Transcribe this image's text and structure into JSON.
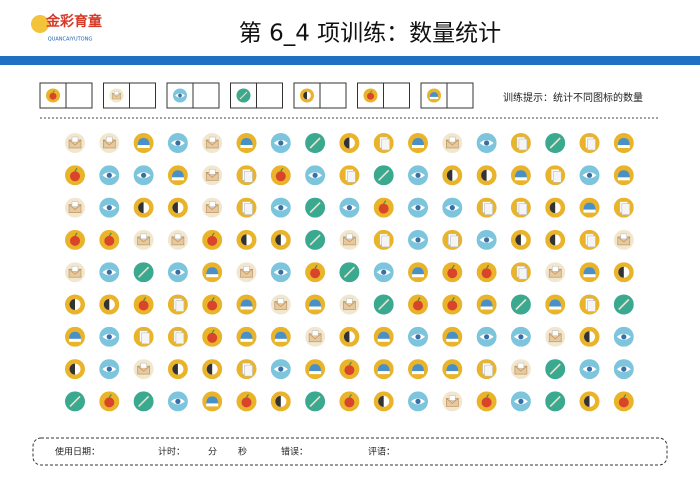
{
  "header": {
    "logo": "金彩育童",
    "logo_sub": "QUANCAIYUTONG",
    "title": "第 6_4 项训练：数量统计"
  },
  "hint": "训练提示：统计不同图标的数量",
  "footer": {
    "date": "使用日期：",
    "timer": "计时：",
    "minute": "分",
    "second": "秒",
    "errors": "错误：",
    "comment": "评语："
  }
}
